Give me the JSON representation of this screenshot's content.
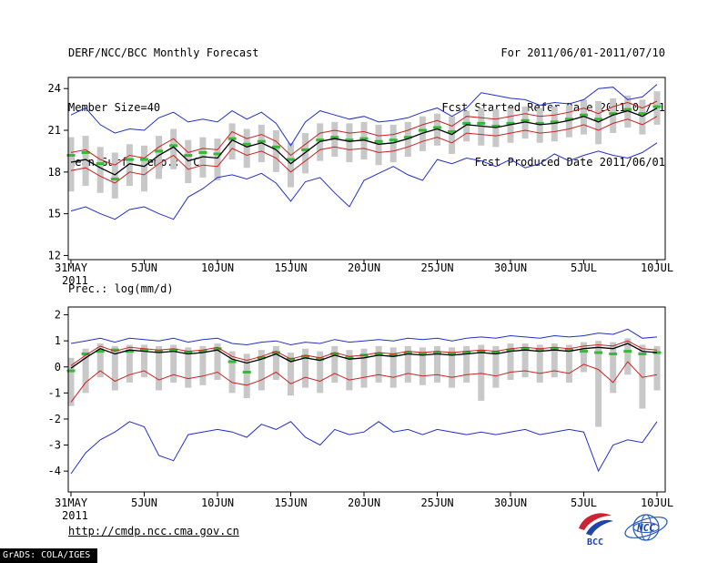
{
  "header": {
    "title": "DERF/NCC/BCC Monthly Forecast",
    "member_size": "Member Size=40",
    "temp_label": "Mean Surf. Temp.: °C",
    "for_range": "For 2011/06/01-2011/07/10",
    "fcst_started": "Fcst Started Refer Date 2011/05/31",
    "fcst_produced": "Fcst Produced Date 2011/06/01"
  },
  "precip_label": "Prec.: log(mm/d)",
  "footer": {
    "url": "http://cmdp.ncc.cma.gov.cn",
    "grads_credit": "GrADS: COLA/IGES",
    "bcc_logo_text": "BCC",
    "ncc_logo_text": "NCC"
  },
  "chart_data": [
    {
      "type": "line",
      "title": "Mean Surf. Temp.: °C",
      "x_count": 41,
      "xtick_positions": [
        0,
        5,
        10,
        15,
        20,
        25,
        30,
        35,
        40
      ],
      "xtick_labels": [
        "31MAY",
        "5JUN",
        "10JUN",
        "15JUN",
        "20JUN",
        "25JUN",
        "30JUN",
        "5JUL",
        "10JUL"
      ],
      "year_label": "2011",
      "ylim": [
        11.7,
        24.8
      ],
      "yticks": [
        12,
        15,
        18,
        21,
        24
      ],
      "grid": false,
      "legend": false,
      "series": [
        {
          "name": "ensemble-range-bars",
          "style": "bars",
          "color": "#c8c8c8",
          "low": [
            16.6,
            17.0,
            16.5,
            16.1,
            17.0,
            16.6,
            17.5,
            18.2,
            17.2,
            17.6,
            17.4,
            18.9,
            18.3,
            18.7,
            18.0,
            16.9,
            17.9,
            18.8,
            19.1,
            18.7,
            18.9,
            18.5,
            18.7,
            19.1,
            19.5,
            19.9,
            19.3,
            20.2,
            19.9,
            19.8,
            20.1,
            20.4,
            20.1,
            20.2,
            20.5,
            20.7,
            20.0,
            20.8,
            21.2,
            20.7,
            21.4
          ],
          "high": [
            20.5,
            20.6,
            19.8,
            19.4,
            20.0,
            19.9,
            20.6,
            21.1,
            20.3,
            20.5,
            20.4,
            21.5,
            21.1,
            21.4,
            21.0,
            20.1,
            20.8,
            21.5,
            21.6,
            21.5,
            21.6,
            21.4,
            21.4,
            21.6,
            22.0,
            22.2,
            22.0,
            22.4,
            22.6,
            22.5,
            22.6,
            22.7,
            22.6,
            22.7,
            22.8,
            23.2,
            23.1,
            23.3,
            23.5,
            23.2,
            23.8
          ]
        },
        {
          "name": "climatology-dashes",
          "style": "dashes",
          "color": "#33bb33",
          "values": [
            19.2,
            19.4,
            18.6,
            17.5,
            18.9,
            18.9,
            19.5,
            19.9,
            19.2,
            19.4,
            19.3,
            20.4,
            20.0,
            20.2,
            19.8,
            18.9,
            19.6,
            20.3,
            20.5,
            20.3,
            20.4,
            20.2,
            20.3,
            20.5,
            21.0,
            21.2,
            20.9,
            21.5,
            21.5,
            21.3,
            21.5,
            21.7,
            21.5,
            21.6,
            21.8,
            22.1,
            21.8,
            22.2,
            22.5,
            22.2,
            22.7
          ]
        },
        {
          "name": "ensemble-max",
          "style": "line",
          "color": "#2230c8",
          "values": [
            22.1,
            22.6,
            21.4,
            20.8,
            21.1,
            21.0,
            21.9,
            22.3,
            21.6,
            21.8,
            21.6,
            22.4,
            21.8,
            22.3,
            21.5,
            19.9,
            21.6,
            22.4,
            22.1,
            21.8,
            22.0,
            21.6,
            21.7,
            21.9,
            22.3,
            22.6,
            22.0,
            22.6,
            23.7,
            23.5,
            23.3,
            23.2,
            22.8,
            23.0,
            22.9,
            23.2,
            24.0,
            24.1,
            23.2,
            23.4,
            24.3
          ]
        },
        {
          "name": "ensemble-min",
          "style": "line",
          "color": "#2230c8",
          "values": [
            15.2,
            15.5,
            15.0,
            14.6,
            15.3,
            15.5,
            15.0,
            14.6,
            16.2,
            16.8,
            17.6,
            17.8,
            17.5,
            17.9,
            17.2,
            15.9,
            17.3,
            17.6,
            16.5,
            15.5,
            17.4,
            17.9,
            18.4,
            17.8,
            17.4,
            18.9,
            18.6,
            19.0,
            18.8,
            18.4,
            18.9,
            18.3,
            18.6,
            19.3,
            18.8,
            19.2,
            19.5,
            19.2,
            19.0,
            19.4,
            20.1
          ]
        },
        {
          "name": "mean-plus-spread",
          "style": "line",
          "color": "#cc2222",
          "values": [
            19.4,
            19.6,
            18.9,
            18.5,
            19.2,
            19.0,
            19.8,
            20.4,
            19.4,
            19.7,
            19.6,
            20.9,
            20.4,
            20.7,
            20.2,
            19.2,
            20.0,
            20.8,
            21.0,
            20.8,
            20.9,
            20.6,
            20.7,
            21.0,
            21.4,
            21.7,
            21.3,
            22.0,
            21.9,
            21.8,
            22.0,
            22.2,
            22.0,
            22.1,
            22.3,
            22.6,
            22.2,
            22.7,
            23.0,
            22.6,
            23.1
          ]
        },
        {
          "name": "mean-minus-spread",
          "style": "line",
          "color": "#cc2222",
          "values": [
            18.1,
            18.3,
            17.7,
            17.2,
            18.0,
            17.8,
            18.6,
            19.2,
            18.2,
            18.5,
            18.4,
            19.7,
            19.2,
            19.5,
            19.0,
            18.0,
            18.8,
            19.6,
            19.8,
            19.6,
            19.7,
            19.4,
            19.5,
            19.8,
            20.2,
            20.5,
            20.1,
            20.8,
            20.7,
            20.6,
            20.8,
            21.0,
            20.8,
            20.9,
            21.1,
            21.4,
            21.0,
            21.5,
            21.8,
            21.4,
            22.0
          ]
        },
        {
          "name": "ensemble-mean",
          "style": "line",
          "color": "#000000",
          "width": 1.3,
          "values": [
            18.7,
            18.9,
            18.3,
            17.8,
            18.6,
            18.4,
            19.2,
            19.8,
            18.8,
            19.1,
            19.0,
            20.3,
            19.8,
            20.1,
            19.6,
            18.6,
            19.4,
            20.2,
            20.4,
            20.2,
            20.3,
            20.0,
            20.1,
            20.4,
            20.8,
            21.1,
            20.7,
            21.4,
            21.3,
            21.2,
            21.4,
            21.6,
            21.4,
            21.5,
            21.7,
            22.0,
            21.6,
            22.1,
            22.4,
            22.0,
            22.6
          ]
        }
      ]
    },
    {
      "type": "line",
      "title": "Prec.: log(mm/d)",
      "x_count": 41,
      "xtick_positions": [
        0,
        5,
        10,
        15,
        20,
        25,
        30,
        35,
        40
      ],
      "xtick_labels": [
        "31MAY",
        "5JUN",
        "10JUN",
        "15JUN",
        "20JUN",
        "25JUN",
        "30JUN",
        "5JUL",
        "10JUL"
      ],
      "year_label": "2011",
      "ylim": [
        -4.8,
        2.3
      ],
      "yticks": [
        -4,
        -3,
        -2,
        -1,
        0,
        1,
        2
      ],
      "grid": false,
      "legend": false,
      "series": [
        {
          "name": "ensemble-range-bars",
          "style": "bars",
          "color": "#c8c8c8",
          "low": [
            -1.5,
            -1.0,
            -0.4,
            -0.9,
            -0.6,
            -0.4,
            -0.9,
            -0.6,
            -0.8,
            -0.7,
            -0.5,
            -1.0,
            -1.2,
            -0.9,
            -0.5,
            -1.1,
            -0.8,
            -1.0,
            -0.6,
            -0.9,
            -0.8,
            -0.6,
            -0.8,
            -0.6,
            -0.7,
            -0.6,
            -0.8,
            -0.6,
            -1.3,
            -0.8,
            -0.5,
            -0.4,
            -0.6,
            -0.4,
            -0.6,
            -0.2,
            -2.3,
            -1.0,
            -0.3,
            -1.6,
            -0.9
          ],
          "high": [
            0.35,
            0.7,
            0.9,
            0.8,
            0.85,
            0.85,
            0.8,
            0.85,
            0.75,
            0.8,
            0.9,
            0.6,
            0.5,
            0.65,
            0.8,
            0.55,
            0.7,
            0.6,
            0.8,
            0.65,
            0.7,
            0.8,
            0.75,
            0.8,
            0.75,
            0.8,
            0.75,
            0.8,
            0.85,
            0.8,
            0.9,
            0.9,
            0.85,
            0.9,
            0.85,
            0.95,
            1.0,
            0.95,
            1.1,
            0.85,
            0.8
          ]
        },
        {
          "name": "climatology-dashes",
          "style": "dashes",
          "color": "#33bb33",
          "values": [
            -0.15,
            0.5,
            0.6,
            0.65,
            0.6,
            0.65,
            0.6,
            0.65,
            0.55,
            0.6,
            0.7,
            0.2,
            -0.2,
            0.35,
            0.55,
            0.3,
            0.4,
            0.3,
            0.5,
            0.35,
            0.45,
            0.5,
            0.45,
            0.55,
            0.5,
            0.55,
            0.5,
            0.55,
            0.6,
            0.55,
            0.65,
            0.7,
            0.65,
            0.7,
            0.65,
            0.6,
            0.55,
            0.5,
            0.6,
            0.5,
            0.55
          ]
        },
        {
          "name": "ensemble-max",
          "style": "line",
          "color": "#2230c8",
          "values": [
            0.9,
            1.0,
            1.1,
            0.95,
            1.1,
            1.05,
            1.0,
            1.1,
            0.95,
            1.05,
            1.1,
            0.9,
            0.85,
            0.95,
            1.0,
            0.85,
            0.95,
            0.9,
            1.05,
            0.95,
            1.0,
            1.05,
            1.0,
            1.1,
            1.05,
            1.1,
            1.0,
            1.1,
            1.15,
            1.1,
            1.2,
            1.15,
            1.1,
            1.2,
            1.15,
            1.2,
            1.3,
            1.25,
            1.45,
            1.1,
            1.15
          ]
        },
        {
          "name": "ensemble-min",
          "style": "line",
          "color": "#2230c8",
          "values": [
            -4.1,
            -3.3,
            -2.8,
            -2.5,
            -2.1,
            -2.3,
            -3.4,
            -3.6,
            -2.6,
            -2.5,
            -2.4,
            -2.5,
            -2.7,
            -2.2,
            -2.4,
            -2.1,
            -2.7,
            -3.0,
            -2.4,
            -2.6,
            -2.5,
            -2.1,
            -2.5,
            -2.4,
            -2.6,
            -2.4,
            -2.5,
            -2.6,
            -2.5,
            -2.6,
            -2.5,
            -2.4,
            -2.6,
            -2.5,
            -2.4,
            -2.5,
            -4.0,
            -3.0,
            -2.8,
            -2.9,
            -2.1
          ]
        },
        {
          "name": "mean-plus-spread",
          "style": "line",
          "color": "#cc2222",
          "values": [
            0.05,
            0.45,
            0.8,
            0.6,
            0.75,
            0.7,
            0.65,
            0.7,
            0.6,
            0.65,
            0.75,
            0.4,
            0.25,
            0.4,
            0.6,
            0.3,
            0.45,
            0.35,
            0.55,
            0.4,
            0.45,
            0.55,
            0.5,
            0.6,
            0.55,
            0.6,
            0.55,
            0.6,
            0.65,
            0.6,
            0.7,
            0.75,
            0.7,
            0.75,
            0.7,
            0.8,
            0.85,
            0.8,
            1.0,
            0.7,
            0.65
          ]
        },
        {
          "name": "mean-minus-spread",
          "style": "line",
          "color": "#cc2222",
          "values": [
            -1.35,
            -0.6,
            -0.15,
            -0.55,
            -0.3,
            -0.15,
            -0.5,
            -0.3,
            -0.45,
            -0.35,
            -0.2,
            -0.6,
            -0.7,
            -0.5,
            -0.2,
            -0.65,
            -0.4,
            -0.55,
            -0.25,
            -0.5,
            -0.4,
            -0.3,
            -0.4,
            -0.25,
            -0.35,
            -0.3,
            -0.4,
            -0.3,
            -0.25,
            -0.35,
            -0.2,
            -0.15,
            -0.25,
            -0.15,
            -0.25,
            0.1,
            -0.1,
            -0.6,
            0.2,
            -0.4,
            -0.3
          ]
        },
        {
          "name": "ensemble-mean",
          "style": "line",
          "color": "#000000",
          "width": 1.3,
          "values": [
            -0.05,
            0.35,
            0.7,
            0.5,
            0.65,
            0.6,
            0.55,
            0.6,
            0.5,
            0.55,
            0.65,
            0.3,
            0.15,
            0.3,
            0.5,
            0.2,
            0.35,
            0.25,
            0.45,
            0.3,
            0.35,
            0.45,
            0.4,
            0.5,
            0.45,
            0.5,
            0.45,
            0.5,
            0.55,
            0.5,
            0.6,
            0.65,
            0.6,
            0.65,
            0.6,
            0.7,
            0.75,
            0.7,
            0.9,
            0.6,
            0.55
          ]
        }
      ]
    }
  ]
}
